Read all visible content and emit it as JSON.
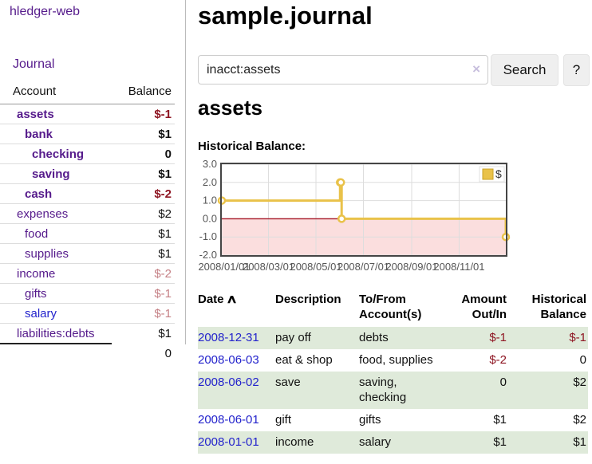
{
  "app": {
    "title": "hledger-web"
  },
  "colors": {
    "link_purple": "#551a8b",
    "link_blue": "#2323cc",
    "negative_strong": "#8e1522",
    "negative_soft": "#c58085",
    "row_green": "#dfeada",
    "chart_gold": "#e9c24a",
    "chart_negative_bg": "#fbdede",
    "chart_zero_line": "#a51525"
  },
  "sidebar": {
    "journal_label": "Journal",
    "accounts": {
      "header_account": "Account",
      "header_balance": "Balance",
      "rows": [
        {
          "name": "assets",
          "depth": 1,
          "bold": true,
          "balance": "$-1",
          "balance_tone": "neg-strong"
        },
        {
          "name": "bank",
          "depth": 2,
          "bold": true,
          "balance": "$1",
          "balance_tone": "pos"
        },
        {
          "name": "checking",
          "depth": 3,
          "bold": true,
          "balance": "0",
          "balance_tone": "pos"
        },
        {
          "name": "saving",
          "depth": 3,
          "bold": true,
          "balance": "$1",
          "balance_tone": "pos"
        },
        {
          "name": "cash",
          "depth": 2,
          "bold": true,
          "balance": "$-2",
          "balance_tone": "neg-strong"
        },
        {
          "name": "expenses",
          "depth": 1,
          "bold": false,
          "balance": "$2",
          "balance_tone": "pos"
        },
        {
          "name": "food",
          "depth": 2,
          "bold": false,
          "balance": "$1",
          "balance_tone": "pos"
        },
        {
          "name": "supplies",
          "depth": 2,
          "bold": false,
          "balance": "$1",
          "balance_tone": "pos"
        },
        {
          "name": "income",
          "depth": 1,
          "bold": false,
          "balance": "$-2",
          "balance_tone": "neg-soft"
        },
        {
          "name": "gifts",
          "depth": 2,
          "bold": false,
          "balance": "$-1",
          "balance_tone": "neg-soft"
        },
        {
          "name": "salary",
          "depth": 2,
          "bold": false,
          "balance": "$-1",
          "balance_tone": "neg-soft",
          "link_tone": "blue"
        },
        {
          "name": "liabilities:debts",
          "depth": 1,
          "bold": false,
          "balance": "$1",
          "balance_tone": "pos"
        }
      ],
      "total": "0"
    }
  },
  "main": {
    "title": "sample.journal",
    "search": {
      "value": "inacct:assets",
      "clear_icon": "×",
      "button_label": "Search",
      "help_label": "?"
    },
    "account_title": "assets",
    "chart_label": "Historical Balance:"
  },
  "chart_data": {
    "type": "line",
    "step": true,
    "title": "Historical Balance",
    "series": [
      {
        "name": "$",
        "color": "#e9c24a",
        "points": [
          [
            "2008-01-01",
            1
          ],
          [
            "2008-06-01",
            2
          ],
          [
            "2008-06-02",
            2
          ],
          [
            "2008-06-03",
            0
          ],
          [
            "2008-12-31",
            -1
          ]
        ]
      }
    ],
    "xlim": [
      "2008-01-01",
      "2008-12-31"
    ],
    "ylim": [
      -2,
      3
    ],
    "x_ticks": [
      "2008/01/01",
      "2008/03/01",
      "2008/05/01",
      "2008/07/01",
      "2008/09/01",
      "2008/11/01"
    ],
    "y_ticks": [
      "3.0",
      "2.0",
      "1.0",
      "0.0",
      "-1.0",
      "-2.0"
    ],
    "grid": true,
    "legend": {
      "label": "$",
      "position": "top-right"
    },
    "negative_region_color": "#fbdede",
    "zero_line_color": "#a51525"
  },
  "register": {
    "headers": [
      "Date",
      "Description",
      "To/From Account(s)",
      "Amount Out/In",
      "Historical Balance"
    ],
    "sort_icon": "∧",
    "rows": [
      {
        "date": "2008-12-31",
        "description": "pay off",
        "accounts": "debts",
        "amount": "$-1",
        "amount_tone": "neg",
        "balance": "$-1",
        "balance_tone": "neg",
        "shaded": true
      },
      {
        "date": "2008-06-03",
        "description": "eat & shop",
        "accounts": "food, supplies",
        "amount": "$-2",
        "amount_tone": "neg",
        "balance": "0",
        "balance_tone": "pos",
        "shaded": false
      },
      {
        "date": "2008-06-02",
        "description": "save",
        "accounts": "saving,\nchecking",
        "amount": "0",
        "amount_tone": "pos",
        "balance": "$2",
        "balance_tone": "pos",
        "shaded": true
      },
      {
        "date": "2008-06-01",
        "description": "gift",
        "accounts": "gifts",
        "amount": "$1",
        "amount_tone": "pos",
        "balance": "$2",
        "balance_tone": "pos",
        "shaded": false
      },
      {
        "date": "2008-01-01",
        "description": "income",
        "accounts": "salary",
        "amount": "$1",
        "amount_tone": "pos",
        "balance": "$1",
        "balance_tone": "pos",
        "shaded": true
      }
    ]
  }
}
